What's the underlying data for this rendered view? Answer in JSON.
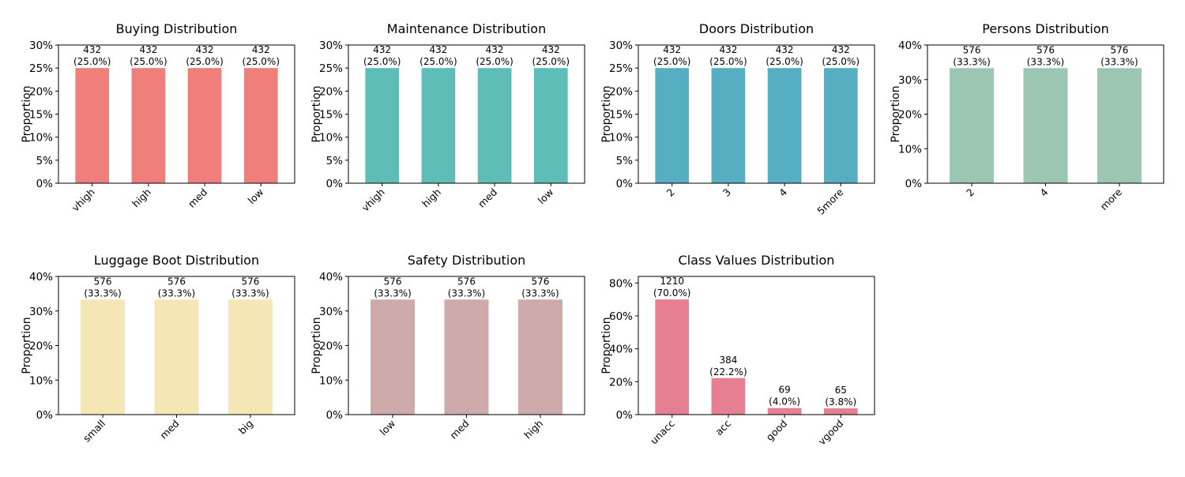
{
  "figure": {
    "background": "#ffffff"
  },
  "chart_data": [
    {
      "type": "bar",
      "title": "Buying Distribution",
      "ylabel": "Proportion",
      "xlabel": "",
      "categories": [
        "vhigh",
        "high",
        "med",
        "low"
      ],
      "values": [
        0.25,
        0.25,
        0.25,
        0.25
      ],
      "counts": [
        432,
        432,
        432,
        432
      ],
      "value_labels": [
        "(25.0%)",
        "(25.0%)",
        "(25.0%)",
        "(25.0%)"
      ],
      "ylim": [
        0,
        0.3
      ],
      "yticks": [
        0,
        0.05,
        0.1,
        0.15,
        0.2,
        0.25,
        0.3
      ],
      "ytick_labels": [
        "0%",
        "5%",
        "10%",
        "15%",
        "20%",
        "25%",
        "30%"
      ],
      "color": "#f07f7c",
      "grid": false,
      "legend": "none"
    },
    {
      "type": "bar",
      "title": "Maintenance Distribution",
      "ylabel": "Proportion",
      "xlabel": "",
      "categories": [
        "vhigh",
        "high",
        "med",
        "low"
      ],
      "values": [
        0.25,
        0.25,
        0.25,
        0.25
      ],
      "counts": [
        432,
        432,
        432,
        432
      ],
      "value_labels": [
        "(25.0%)",
        "(25.0%)",
        "(25.0%)",
        "(25.0%)"
      ],
      "ylim": [
        0,
        0.3
      ],
      "yticks": [
        0,
        0.05,
        0.1,
        0.15,
        0.2,
        0.25,
        0.3
      ],
      "ytick_labels": [
        "0%",
        "5%",
        "10%",
        "15%",
        "20%",
        "25%",
        "30%"
      ],
      "color": "#5fbdb7",
      "grid": false,
      "legend": "none"
    },
    {
      "type": "bar",
      "title": "Doors Distribution",
      "ylabel": "Proportion",
      "xlabel": "",
      "categories": [
        "2",
        "3",
        "4",
        "5more"
      ],
      "values": [
        0.25,
        0.25,
        0.25,
        0.25
      ],
      "counts": [
        432,
        432,
        432,
        432
      ],
      "value_labels": [
        "(25.0%)",
        "(25.0%)",
        "(25.0%)",
        "(25.0%)"
      ],
      "ylim": [
        0,
        0.3
      ],
      "yticks": [
        0,
        0.05,
        0.1,
        0.15,
        0.2,
        0.25,
        0.3
      ],
      "ytick_labels": [
        "0%",
        "5%",
        "10%",
        "15%",
        "20%",
        "25%",
        "30%"
      ],
      "color": "#56aec3",
      "grid": false,
      "legend": "none"
    },
    {
      "type": "bar",
      "title": "Persons Distribution",
      "ylabel": "Proportion",
      "xlabel": "",
      "categories": [
        "2",
        "4",
        "more"
      ],
      "values": [
        0.333,
        0.333,
        0.333
      ],
      "counts": [
        576,
        576,
        576
      ],
      "value_labels": [
        "(33.3%)",
        "(33.3%)",
        "(33.3%)"
      ],
      "ylim": [
        0,
        0.4
      ],
      "yticks": [
        0,
        0.1,
        0.2,
        0.3,
        0.4
      ],
      "ytick_labels": [
        "0%",
        "10%",
        "20%",
        "30%",
        "40%"
      ],
      "color": "#9dc6b2",
      "grid": false,
      "legend": "none"
    },
    {
      "type": "bar",
      "title": "Luggage Boot Distribution",
      "ylabel": "Proportion",
      "xlabel": "",
      "categories": [
        "small",
        "med",
        "big"
      ],
      "values": [
        0.333,
        0.333,
        0.333
      ],
      "counts": [
        576,
        576,
        576
      ],
      "value_labels": [
        "(33.3%)",
        "(33.3%)",
        "(33.3%)"
      ],
      "ylim": [
        0,
        0.4
      ],
      "yticks": [
        0,
        0.1,
        0.2,
        0.3,
        0.4
      ],
      "ytick_labels": [
        "0%",
        "10%",
        "20%",
        "30%",
        "40%"
      ],
      "color": "#f5e7b5",
      "grid": false,
      "legend": "none"
    },
    {
      "type": "bar",
      "title": "Safety Distribution",
      "ylabel": "Proportion",
      "xlabel": "",
      "categories": [
        "low",
        "med",
        "high"
      ],
      "values": [
        0.333,
        0.333,
        0.333
      ],
      "counts": [
        576,
        576,
        576
      ],
      "value_labels": [
        "(33.3%)",
        "(33.3%)",
        "(33.3%)"
      ],
      "ylim": [
        0,
        0.4
      ],
      "yticks": [
        0,
        0.1,
        0.2,
        0.3,
        0.4
      ],
      "ytick_labels": [
        "0%",
        "10%",
        "20%",
        "30%",
        "40%"
      ],
      "color": "#ceabaa",
      "grid": false,
      "legend": "none"
    },
    {
      "type": "bar",
      "title": "Class Values Distribution",
      "ylabel": "Proportion",
      "xlabel": "",
      "categories": [
        "unacc",
        "acc",
        "good",
        "vgood"
      ],
      "values": [
        0.7,
        0.222,
        0.04,
        0.038
      ],
      "counts": [
        1210,
        384,
        69,
        65
      ],
      "value_labels": [
        "(70.0%)",
        "(22.2%)",
        "(4.0%)",
        "(3.8%)"
      ],
      "ylim": [
        0,
        0.84
      ],
      "yticks": [
        0,
        0.2,
        0.4,
        0.6,
        0.8
      ],
      "ytick_labels": [
        "0%",
        "20%",
        "40%",
        "60%",
        "80%"
      ],
      "color": "#e67f92",
      "grid": false,
      "legend": "none"
    }
  ]
}
